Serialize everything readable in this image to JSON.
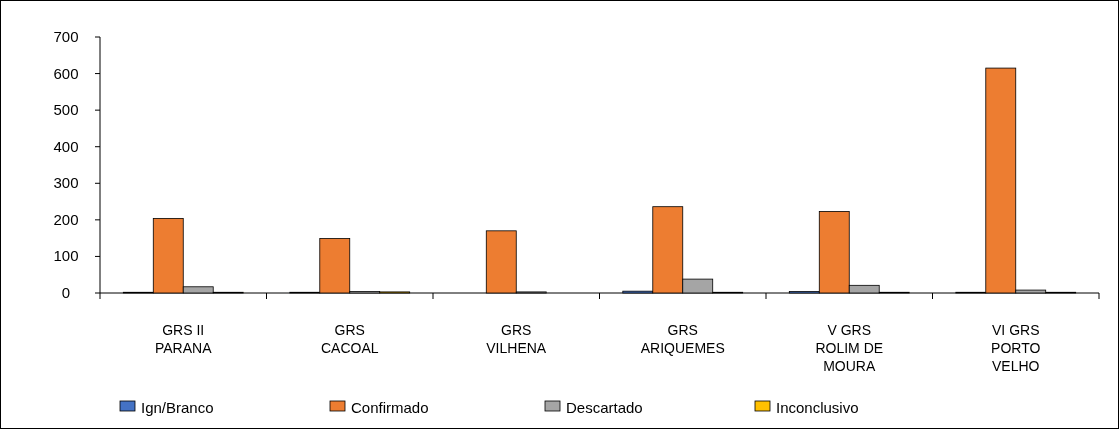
{
  "chart_data": {
    "type": "bar",
    "categories": [
      "GRS II PARANA",
      "GRS CACOAL",
      "GRS VILHENA",
      "GRS ARIQUEMES",
      "V GRS ROLIM DE MOURA",
      "VI GRS PORTO VELHO"
    ],
    "series": [
      {
        "name": "Ign/Branco",
        "color": "#4472c4",
        "values": [
          2,
          2,
          null,
          5,
          4,
          2
        ]
      },
      {
        "name": "Confirmado",
        "color": "#ed7d31",
        "values": [
          204,
          149,
          170,
          236,
          223,
          615
        ]
      },
      {
        "name": "Descartado",
        "color": "#a5a5a5",
        "values": [
          17,
          4,
          3,
          38,
          21,
          8
        ]
      },
      {
        "name": "Inconclusivo",
        "color": "#ffc000",
        "values": [
          2,
          3,
          0,
          2,
          2,
          2
        ]
      }
    ],
    "ylim": [
      0,
      700
    ],
    "yticks": [
      0,
      100,
      200,
      300,
      400,
      500,
      600,
      700
    ],
    "grid": false,
    "legend": "bottom"
  }
}
